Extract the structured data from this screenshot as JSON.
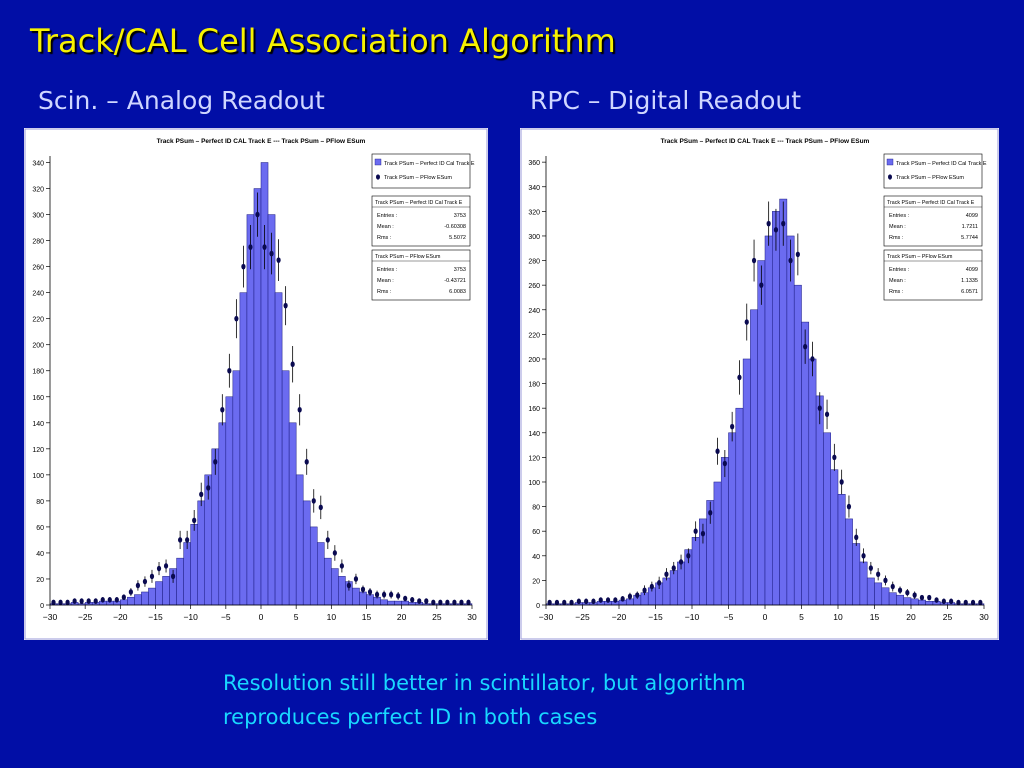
{
  "slide": {
    "title": "Track/CAL Cell Association Algorithm",
    "left_heading": "Scin. – Analog Readout",
    "right_heading": "RPC – Digital Readout",
    "caption_line1": "Resolution still better in scintillator, but algorithm",
    "caption_line2": "reproduces perfect ID in both cases"
  },
  "colors": {
    "background": "#010ea6",
    "title": "#f7f200",
    "caption": "#19d7ff",
    "heading": "#cfd6ff",
    "histogram_fill": "#6b6bf0",
    "histogram_edge": "#1a1a80",
    "marker": "#0a0a50"
  },
  "chart_data": [
    {
      "type": "bar",
      "title": "Track PSum – Perfect ID CAL Track E --- Track PSum – PFlow ESum",
      "xlim": [
        -30,
        30
      ],
      "ylim": [
        0,
        345
      ],
      "xticks": [
        -30,
        -25,
        -20,
        -15,
        -10,
        -5,
        0,
        5,
        10,
        15,
        20,
        25,
        30
      ],
      "yticks": [
        0,
        20,
        40,
        60,
        80,
        100,
        120,
        140,
        160,
        180,
        200,
        220,
        240,
        260,
        280,
        300,
        320,
        340
      ],
      "legend": [
        "Track PSum – Perfect ID Cal Track E",
        "Track PSum – PFlow ESum"
      ],
      "legend_position": "top-right",
      "stats": [
        {
          "name": "Track PSum – Perfect ID Cal Track E",
          "rows": [
            [
              "Entries :",
              "3753"
            ],
            [
              "Mean :",
              "-0.60308"
            ],
            [
              "Rms :",
              "5.5072"
            ]
          ]
        },
        {
          "name": "Track PSum – PFlow ESum",
          "rows": [
            [
              "Entries :",
              "3753"
            ],
            [
              "Mean :",
              "-0.43721"
            ],
            [
              "Rms :",
              "6.0083"
            ]
          ]
        }
      ],
      "bin_width": 1,
      "x": [
        -29.5,
        -28.5,
        -27.5,
        -26.5,
        -25.5,
        -24.5,
        -23.5,
        -22.5,
        -21.5,
        -20.5,
        -19.5,
        -18.5,
        -17.5,
        -16.5,
        -15.5,
        -14.5,
        -13.5,
        -12.5,
        -11.5,
        -10.5,
        -9.5,
        -8.5,
        -7.5,
        -6.5,
        -5.5,
        -4.5,
        -3.5,
        -2.5,
        -1.5,
        -0.5,
        0.5,
        1.5,
        2.5,
        3.5,
        4.5,
        5.5,
        6.5,
        7.5,
        8.5,
        9.5,
        10.5,
        11.5,
        12.5,
        13.5,
        14.5,
        15.5,
        16.5,
        17.5,
        18.5,
        19.5,
        20.5,
        21.5,
        22.5,
        23.5,
        24.5,
        25.5,
        26.5,
        27.5,
        28.5,
        29.5
      ],
      "series": [
        {
          "name": "Track PSum – Perfect ID Cal Track E",
          "style": "histogram",
          "values": [
            1,
            1,
            1,
            2,
            1,
            2,
            2,
            3,
            3,
            3,
            4,
            6,
            8,
            10,
            13,
            18,
            22,
            28,
            36,
            48,
            62,
            80,
            100,
            120,
            140,
            160,
            180,
            240,
            300,
            320,
            340,
            300,
            240,
            180,
            140,
            100,
            80,
            60,
            48,
            36,
            28,
            22,
            18,
            13,
            10,
            8,
            6,
            4,
            3,
            3,
            3,
            2,
            2,
            1,
            1,
            1,
            1,
            1,
            1,
            1
          ]
        },
        {
          "name": "Track PSum – PFlow ESum",
          "style": "points",
          "values": [
            2,
            2,
            2,
            3,
            3,
            3,
            3,
            4,
            4,
            4,
            6,
            10,
            15,
            18,
            22,
            28,
            30,
            22,
            50,
            50,
            65,
            85,
            90,
            110,
            150,
            180,
            220,
            260,
            275,
            300,
            275,
            270,
            265,
            230,
            185,
            150,
            110,
            80,
            75,
            50,
            40,
            30,
            15,
            20,
            12,
            10,
            8,
            8,
            8,
            7,
            5,
            4,
            3,
            3,
            2,
            2,
            2,
            2,
            2,
            2
          ],
          "errors": [
            1,
            1,
            1,
            2,
            2,
            2,
            2,
            2,
            2,
            2,
            2,
            3,
            4,
            4,
            5,
            5,
            5,
            5,
            7,
            7,
            8,
            9,
            9,
            10,
            12,
            13,
            15,
            16,
            17,
            17,
            17,
            16,
            16,
            15,
            14,
            12,
            10,
            9,
            9,
            7,
            6,
            5,
            4,
            4,
            3,
            3,
            3,
            3,
            3,
            3,
            2,
            2,
            2,
            2,
            1,
            1,
            1,
            1,
            1,
            1
          ]
        }
      ]
    },
    {
      "type": "bar",
      "title": "Track PSum – Perfect ID CAL Track E --- Track PSum – PFlow ESum",
      "xlim": [
        -30,
        30
      ],
      "ylim": [
        0,
        365
      ],
      "xticks": [
        -30,
        -25,
        -20,
        -15,
        -10,
        -5,
        0,
        5,
        10,
        15,
        20,
        25,
        30
      ],
      "yticks": [
        0,
        20,
        40,
        60,
        80,
        100,
        120,
        140,
        160,
        180,
        200,
        220,
        240,
        260,
        280,
        300,
        320,
        340,
        360
      ],
      "legend": [
        "Track PSum – Perfect ID Cal Track E",
        "Track PSum – PFlow ESum"
      ],
      "legend_position": "top-right",
      "stats": [
        {
          "name": "Track PSum – Perfect ID Cal Track E",
          "rows": [
            [
              "Entries :",
              "4099"
            ],
            [
              "Mean :",
              "1.7211"
            ],
            [
              "Rms :",
              "5.7744"
            ]
          ]
        },
        {
          "name": "Track PSum – PFlow ESum",
          "rows": [
            [
              "Entries :",
              "4099"
            ],
            [
              "Mean :",
              "1.1335"
            ],
            [
              "Rms :",
              "6.0571"
            ]
          ]
        }
      ],
      "bin_width": 1,
      "x": [
        -29.5,
        -28.5,
        -27.5,
        -26.5,
        -25.5,
        -24.5,
        -23.5,
        -22.5,
        -21.5,
        -20.5,
        -19.5,
        -18.5,
        -17.5,
        -16.5,
        -15.5,
        -14.5,
        -13.5,
        -12.5,
        -11.5,
        -10.5,
        -9.5,
        -8.5,
        -7.5,
        -6.5,
        -5.5,
        -4.5,
        -3.5,
        -2.5,
        -1.5,
        -0.5,
        0.5,
        1.5,
        2.5,
        3.5,
        4.5,
        5.5,
        6.5,
        7.5,
        8.5,
        9.5,
        10.5,
        11.5,
        12.5,
        13.5,
        14.5,
        15.5,
        16.5,
        17.5,
        18.5,
        19.5,
        20.5,
        21.5,
        22.5,
        23.5,
        24.5,
        25.5,
        26.5,
        27.5,
        28.5,
        29.5
      ],
      "series": [
        {
          "name": "Track PSum – Perfect ID Cal Track E",
          "style": "histogram",
          "values": [
            1,
            1,
            1,
            1,
            2,
            2,
            2,
            3,
            3,
            3,
            4,
            5,
            8,
            10,
            14,
            18,
            22,
            28,
            35,
            45,
            55,
            70,
            85,
            100,
            120,
            140,
            160,
            200,
            240,
            280,
            300,
            320,
            330,
            300,
            260,
            230,
            200,
            170,
            140,
            110,
            90,
            70,
            50,
            35,
            22,
            18,
            14,
            10,
            8,
            6,
            5,
            4,
            3,
            3,
            2,
            2,
            1,
            1,
            1,
            1
          ]
        },
        {
          "name": "Track PSum – PFlow ESum",
          "style": "points",
          "values": [
            2,
            2,
            2,
            2,
            3,
            3,
            3,
            4,
            4,
            4,
            5,
            7,
            8,
            12,
            15,
            18,
            25,
            30,
            35,
            40,
            60,
            58,
            75,
            125,
            115,
            145,
            185,
            230,
            280,
            260,
            310,
            305,
            310,
            280,
            285,
            210,
            200,
            160,
            155,
            120,
            100,
            80,
            55,
            40,
            30,
            25,
            20,
            15,
            12,
            10,
            8,
            6,
            6,
            4,
            3,
            3,
            2,
            2,
            2,
            2
          ],
          "errors": [
            1,
            1,
            1,
            1,
            2,
            2,
            2,
            2,
            2,
            2,
            2,
            3,
            3,
            4,
            4,
            5,
            5,
            5,
            6,
            6,
            8,
            8,
            9,
            11,
            11,
            12,
            14,
            15,
            17,
            16,
            18,
            17,
            18,
            17,
            17,
            14,
            14,
            13,
            12,
            11,
            10,
            9,
            7,
            6,
            5,
            5,
            4,
            4,
            3,
            3,
            3,
            2,
            2,
            2,
            2,
            2,
            1,
            1,
            1,
            1
          ]
        }
      ]
    }
  ]
}
